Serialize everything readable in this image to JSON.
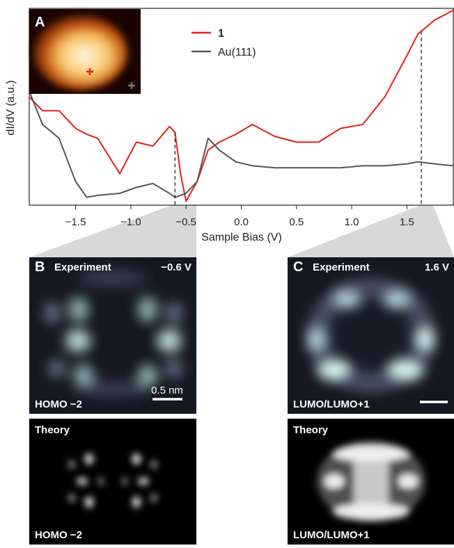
{
  "chart_data": {
    "type": "line",
    "xlabel": "Sample Bias (V)",
    "ylabel": "dI/dV (a.u.)",
    "x": [
      -1.92,
      -1.8,
      -1.65,
      -1.5,
      -1.4,
      -1.3,
      -1.1,
      -0.95,
      -0.8,
      -0.65,
      -0.6,
      -0.55,
      -0.5,
      -0.4,
      -0.3,
      -0.2,
      -0.05,
      0.1,
      0.3,
      0.5,
      0.7,
      0.9,
      1.1,
      1.3,
      1.5,
      1.6,
      1.75,
      1.92
    ],
    "series": [
      {
        "name": "1",
        "color": "#e0201c",
        "values": [
          0.55,
          0.48,
          0.48,
          0.39,
          0.36,
          0.34,
          0.16,
          0.32,
          0.3,
          0.4,
          0.37,
          0.16,
          0.02,
          0.12,
          0.28,
          0.32,
          0.36,
          0.41,
          0.35,
          0.32,
          0.32,
          0.39,
          0.41,
          0.55,
          0.76,
          0.87,
          0.94,
          0.99
        ]
      },
      {
        "name": "Au(111)",
        "color": "#555555",
        "values": [
          0.58,
          0.41,
          0.34,
          0.12,
          0.04,
          0.05,
          0.06,
          0.09,
          0.11,
          0.06,
          0.04,
          0.05,
          0.06,
          0.12,
          0.34,
          0.28,
          0.22,
          0.2,
          0.19,
          0.19,
          0.19,
          0.19,
          0.2,
          0.2,
          0.21,
          0.22,
          0.21,
          0.2
        ]
      }
    ],
    "markers": [
      -0.6,
      1.63
    ],
    "xlim": [
      -1.92,
      1.92
    ],
    "ylim": [
      0,
      1
    ],
    "xticks": [
      {
        "value": -1.5,
        "label": "−1.5"
      },
      {
        "value": -1.0,
        "label": "−1.0"
      },
      {
        "value": -0.5,
        "label": "−0.5"
      },
      {
        "value": 0,
        "label": "0.0"
      },
      0.5,
      {
        "value": 1.0,
        "label": "1.0"
      },
      1.5
    ],
    "panel_label": "A"
  },
  "panels": {
    "b": {
      "label": "B",
      "title": "Experiment",
      "bias": "−0.6 V",
      "scale": "0.5 nm",
      "orbital": "HOMO −2",
      "theory": "Theory",
      "theory_orbital": "HOMO −2"
    },
    "c": {
      "label": "C",
      "title": "Experiment",
      "bias": "1.6 V",
      "orbital": "LUMO/LUMO+1",
      "theory": "Theory",
      "theory_orbital": "LUMO/LUMO+1"
    }
  }
}
